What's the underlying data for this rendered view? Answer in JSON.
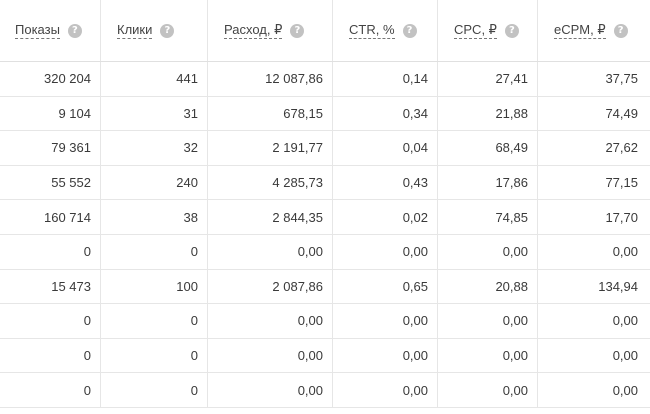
{
  "table": {
    "columns": [
      {
        "label": "Показы",
        "help_icon": "question-circle-icon"
      },
      {
        "label": "Клики",
        "help_icon": "question-circle-icon"
      },
      {
        "label": "Расход, ₽",
        "help_icon": "question-circle-icon"
      },
      {
        "label": "CTR, %",
        "help_icon": "question-circle-icon"
      },
      {
        "label": "CPC, ₽",
        "help_icon": "question-circle-icon"
      },
      {
        "label": "eCPM, ₽",
        "help_icon": "question-circle-icon"
      }
    ],
    "help_glyph": "?",
    "rows": [
      [
        "320 204",
        "441",
        "12 087,86",
        "0,14",
        "27,41",
        "37,75"
      ],
      [
        "9 104",
        "31",
        "678,15",
        "0,34",
        "21,88",
        "74,49"
      ],
      [
        "79 361",
        "32",
        "2 191,77",
        "0,04",
        "68,49",
        "27,62"
      ],
      [
        "55 552",
        "240",
        "4 285,73",
        "0,43",
        "17,86",
        "77,15"
      ],
      [
        "160 714",
        "38",
        "2 844,35",
        "0,02",
        "74,85",
        "17,70"
      ],
      [
        "0",
        "0",
        "0,00",
        "0,00",
        "0,00",
        "0,00"
      ],
      [
        "15 473",
        "100",
        "2 087,86",
        "0,65",
        "20,88",
        "134,94"
      ],
      [
        "0",
        "0",
        "0,00",
        "0,00",
        "0,00",
        "0,00"
      ],
      [
        "0",
        "0",
        "0,00",
        "0,00",
        "0,00",
        "0,00"
      ],
      [
        "0",
        "0",
        "0,00",
        "0,00",
        "0,00",
        "0,00"
      ]
    ]
  }
}
